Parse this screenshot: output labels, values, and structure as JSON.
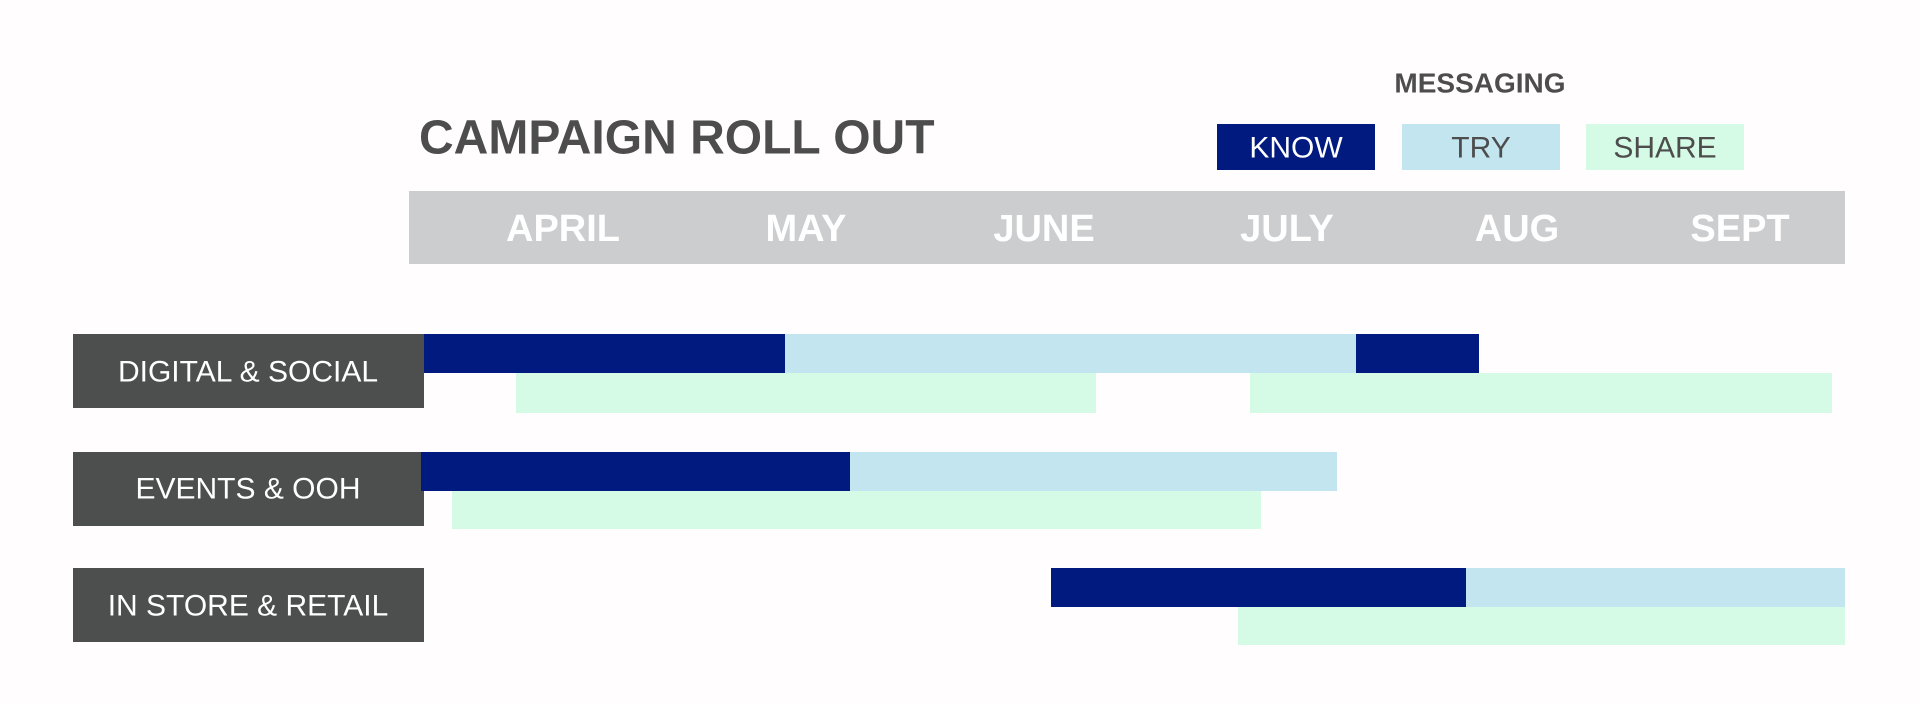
{
  "header": {
    "title": "CAMPAIGN ROLL OUT"
  },
  "legend": {
    "title": "MESSAGING",
    "items": [
      "KNOW",
      "TRY",
      "SHARE"
    ]
  },
  "months": [
    "APRIL",
    "MAY",
    "JUNE",
    "JULY",
    "AUG",
    "SEPT"
  ],
  "rows": [
    "DIGITAL & SOCIAL",
    "EVENTS & OOH",
    "IN STORE & RETAIL"
  ]
}
